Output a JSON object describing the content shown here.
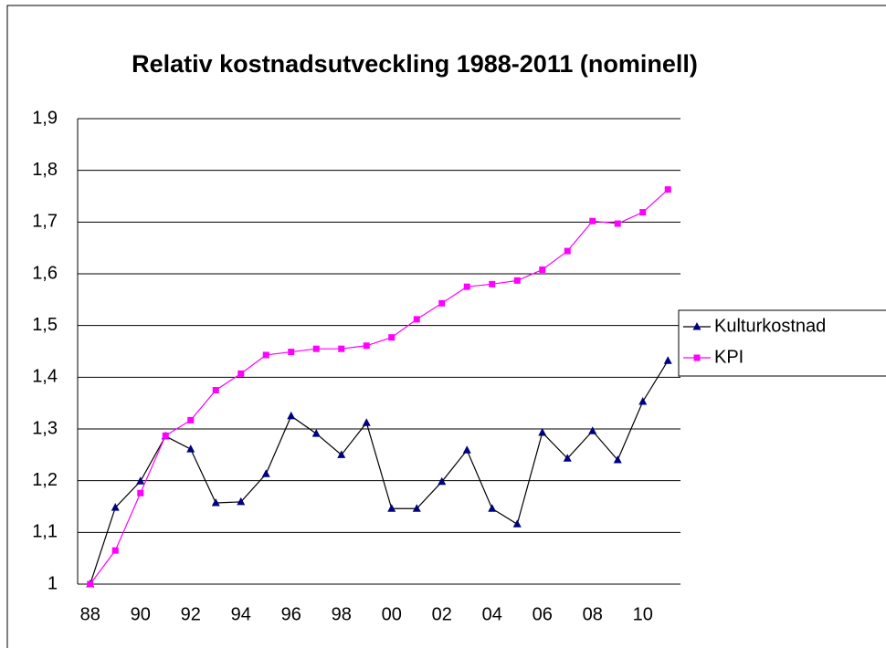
{
  "chart_data": {
    "type": "line",
    "title": "Relativ kostnadsutveckling 1988-2011 (nominell)",
    "categories": [
      "88",
      null,
      "90",
      null,
      "92",
      null,
      "94",
      null,
      "96",
      null,
      "98",
      null,
      "00",
      null,
      "02",
      null,
      "04",
      null,
      "06",
      null,
      "08",
      null,
      "10",
      null
    ],
    "series": [
      {
        "name": "Kulturkostnad",
        "color": "#000080",
        "marker": "triangle",
        "values": [
          1.0,
          1.148,
          1.199,
          1.286,
          1.261,
          1.157,
          1.159,
          1.213,
          1.325,
          1.291,
          1.25,
          1.312,
          1.146,
          1.146,
          1.198,
          1.259,
          1.146,
          1.116,
          1.293,
          1.243,
          1.296,
          1.24,
          1.353,
          1.432
        ]
      },
      {
        "name": "KPI",
        "color": "#ff00ff",
        "marker": "square",
        "values": [
          1.0,
          1.065,
          1.176,
          1.287,
          1.317,
          1.375,
          1.407,
          1.443,
          1.449,
          1.455,
          1.455,
          1.461,
          1.477,
          1.512,
          1.543,
          1.575,
          1.58,
          1.587,
          1.608,
          1.644,
          1.702,
          1.697,
          1.719,
          1.763
        ]
      }
    ],
    "ylim": [
      1,
      1.9
    ],
    "yticks": [
      1,
      {
        "value": 1.1,
        "label": "1,1"
      },
      {
        "value": 1.2,
        "label": "1,2"
      },
      {
        "value": 1.3,
        "label": "1,3"
      },
      {
        "value": 1.4,
        "label": "1,4"
      },
      {
        "value": 1.5,
        "label": "1,5"
      },
      {
        "value": 1.6,
        "label": "1,6"
      },
      {
        "value": 1.7,
        "label": "1,7"
      },
      {
        "value": 1.8,
        "label": "1,8"
      },
      {
        "value": 1.9,
        "label": "1,9"
      }
    ],
    "grid": true,
    "legend": "right"
  }
}
